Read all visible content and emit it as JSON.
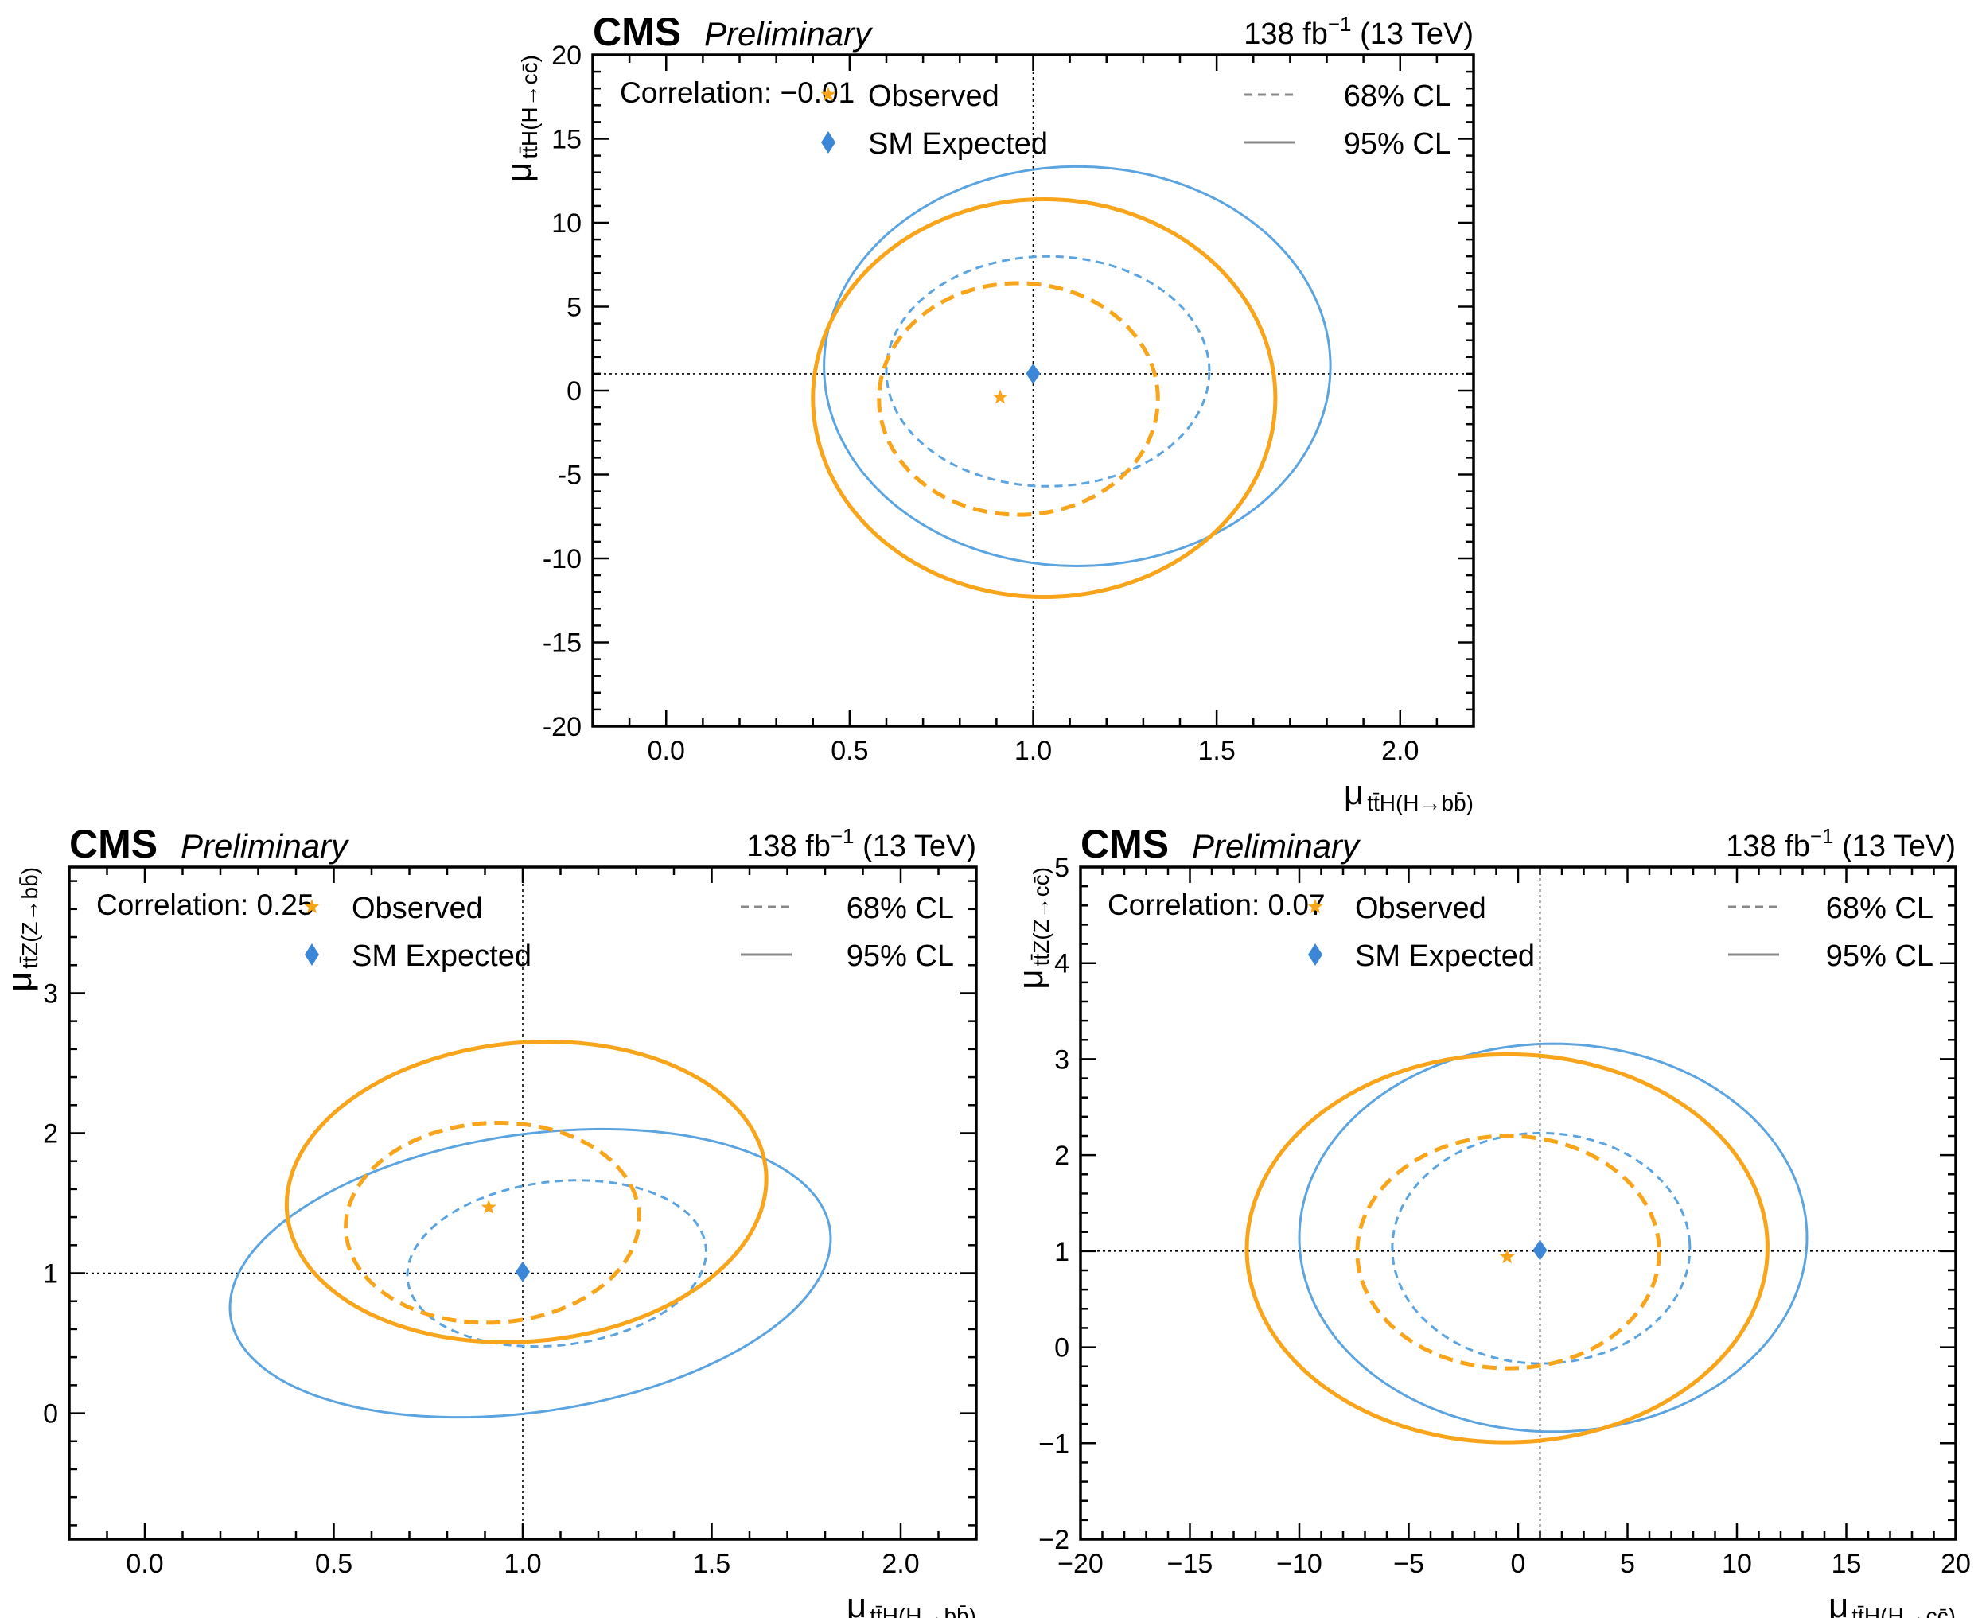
{
  "colors": {
    "observed": "#f8a51c",
    "expected": "#5ca4e0",
    "expected_marker": "#3b86d6",
    "legend_line": "#888888"
  },
  "chart_data": [
    {
      "type": "contour",
      "experiment": "CMS",
      "status": "Preliminary",
      "lumi_text": "138 fb",
      "lumi_exp": "−1",
      "energy_text": "(13 TeV)",
      "correlation_label": "Correlation: −0.01",
      "xlabel": {
        "main": "μ",
        "sub": "tt̄H(H→bb̄)"
      },
      "ylabel": {
        "main": "μ",
        "sub": "tt̄H(H→cc̄)"
      },
      "xlim": [
        -0.2,
        2.2
      ],
      "ylim": [
        -20,
        20
      ],
      "xticks": [
        0.0,
        0.5,
        1.0,
        1.5,
        2.0
      ],
      "xtick_labels": [
        "0.0",
        "0.5",
        "1.0",
        "1.5",
        "2.0"
      ],
      "yticks": [
        -20,
        -15,
        -10,
        -5,
        0,
        5,
        10,
        15,
        20
      ],
      "ytick_labels": [
        "-20",
        "-15",
        "-10",
        "-5",
        "0",
        "5",
        "10",
        "15",
        "20"
      ],
      "reference": {
        "x": 1.0,
        "y": 1.0
      },
      "observed_point": {
        "x": 0.91,
        "y": -0.4
      },
      "expected_point": {
        "x": 1.0,
        "y": 1.0
      },
      "legend": {
        "observed": "Observed",
        "expected": "SM Expected",
        "cl68": "68% CL",
        "cl95": "95% CL"
      },
      "contours": [
        {
          "series": "expected",
          "cl": "68",
          "cx": 1.04,
          "cy": 1.15,
          "rx": 0.44,
          "ry": 6.85,
          "tilt": 0
        },
        {
          "series": "expected",
          "cl": "95",
          "cx": 1.12,
          "cy": 1.45,
          "rx": 0.69,
          "ry": 11.9,
          "tilt": 0
        },
        {
          "series": "observed",
          "cl": "68",
          "cx": 0.96,
          "cy": -0.5,
          "rx": 0.38,
          "ry": 6.9,
          "tilt": 0
        },
        {
          "series": "observed",
          "cl": "95",
          "cx": 1.03,
          "cy": -0.45,
          "rx": 0.63,
          "ry": 11.85,
          "tilt": 0
        }
      ]
    },
    {
      "type": "contour",
      "experiment": "CMS",
      "status": "Preliminary",
      "lumi_text": "138 fb",
      "lumi_exp": "−1",
      "energy_text": "(13 TeV)",
      "correlation_label": "Correlation: 0.25",
      "xlabel": {
        "main": "μ",
        "sub": "tt̄H(H→bb̄)"
      },
      "ylabel": {
        "main": "μ",
        "sub": "tt̄Z(Z→bb̄)"
      },
      "xlim": [
        -0.2,
        2.2
      ],
      "ylim": [
        -0.9,
        3.9
      ],
      "xticks": [
        0.0,
        0.5,
        1.0,
        1.5,
        2.0
      ],
      "xtick_labels": [
        "0.0",
        "0.5",
        "1.0",
        "1.5",
        "2.0"
      ],
      "yticks": [
        0,
        1,
        2,
        3
      ],
      "ytick_labels": [
        "0",
        "1",
        "2",
        "3"
      ],
      "reference": {
        "x": 1.0,
        "y": 1.0
      },
      "observed_point": {
        "x": 0.91,
        "y": 1.47
      },
      "expected_point": {
        "x": 1.0,
        "y": 1.01
      },
      "legend": {
        "observed": "Observed",
        "expected": "SM Expected",
        "cl68": "68% CL",
        "cl95": "95% CL"
      },
      "contours": [
        {
          "series": "expected",
          "cl": "68",
          "cx": 1.09,
          "cy": 1.07,
          "rx": 0.4,
          "ry": 0.58,
          "tilt": 0.23
        },
        {
          "series": "expected",
          "cl": "95",
          "cx": 1.02,
          "cy": 1.0,
          "rx": 0.81,
          "ry": 0.98,
          "tilt": 0.25
        },
        {
          "series": "observed",
          "cl": "68",
          "cx": 0.92,
          "cy": 1.36,
          "rx": 0.39,
          "ry": 0.71,
          "tilt": 0.24
        },
        {
          "series": "observed",
          "cl": "95",
          "cx": 1.01,
          "cy": 1.58,
          "rx": 0.64,
          "ry": 1.06,
          "tilt": 0.24
        }
      ]
    },
    {
      "type": "contour",
      "experiment": "CMS",
      "status": "Preliminary",
      "lumi_text": "138 fb",
      "lumi_exp": "−1",
      "energy_text": "(13 TeV)",
      "correlation_label": "Correlation: 0.07",
      "xlabel": {
        "main": "μ",
        "sub": "tt̄H(H→cc̄)"
      },
      "ylabel": {
        "main": "μ",
        "sub": "tt̄Z(Z→cc̄)"
      },
      "xlim": [
        -20,
        20
      ],
      "ylim": [
        -2,
        5
      ],
      "xticks": [
        -20,
        -15,
        -10,
        -5,
        0,
        5,
        10,
        15,
        20
      ],
      "xtick_labels": [
        "−20",
        "−15",
        "−10",
        "−5",
        "0",
        "5",
        "10",
        "15",
        "20"
      ],
      "yticks": [
        -2,
        -1,
        0,
        1,
        2,
        3,
        4,
        5
      ],
      "ytick_labels": [
        "−2",
        "−1",
        "0",
        "1",
        "2",
        "3",
        "4",
        "5"
      ],
      "reference": {
        "x": 1.0,
        "y": 1.0
      },
      "observed_point": {
        "x": -0.5,
        "y": 0.94
      },
      "expected_point": {
        "x": 1.0,
        "y": 1.01
      },
      "legend": {
        "observed": "Observed",
        "expected": "SM Expected",
        "cl68": "68% CL",
        "cl95": "95% CL"
      },
      "contours": [
        {
          "series": "expected",
          "cl": "68",
          "cx": 1.05,
          "cy": 1.03,
          "rx": 6.8,
          "ry": 1.2,
          "tilt": 0.05
        },
        {
          "series": "expected",
          "cl": "95",
          "cx": 1.6,
          "cy": 1.14,
          "rx": 11.6,
          "ry": 2.02,
          "tilt": 0.07
        },
        {
          "series": "observed",
          "cl": "68",
          "cx": -0.45,
          "cy": 0.99,
          "rx": 6.9,
          "ry": 1.21,
          "tilt": 0.04
        },
        {
          "series": "observed",
          "cl": "95",
          "cx": -0.5,
          "cy": 1.03,
          "rx": 11.9,
          "ry": 2.02,
          "tilt": 0.06
        }
      ]
    }
  ]
}
